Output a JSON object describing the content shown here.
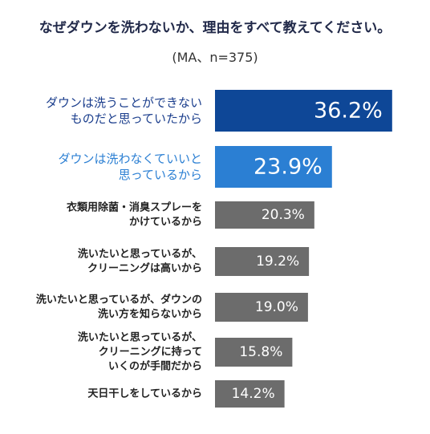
{
  "header": {
    "title": "なぜダウンを洗わないか、理由をすべて教えてください。",
    "subtitle": "(MA、n=375)"
  },
  "colors": {
    "top1": "#0e4797",
    "top2": "#2b7fd3",
    "other": "#6c6c6c",
    "top1_label": "#1a3d8c",
    "top2_label": "#2b7fd3",
    "other_label": "#222222"
  },
  "chart_data": {
    "type": "bar",
    "orientation": "horizontal",
    "title": "なぜダウンを洗わないか、理由をすべて教えてください。",
    "subtitle": "(MA、n=375)",
    "unit": "%",
    "xlim": [
      0,
      40
    ],
    "grid": false,
    "legend": "none",
    "categories": [
      [
        "ダウンは洗うことができない",
        "ものだと思っていたから"
      ],
      [
        "ダウンは洗わなくていいと",
        "思っているから"
      ],
      [
        "衣類用除菌・消臭スプレーを",
        "かけているから"
      ],
      [
        "洗いたいと思っているが、",
        "クリーニングは高いから"
      ],
      [
        "洗いたいと思っているが、ダウンの",
        "洗い方を知らないから"
      ],
      [
        "洗いたいと思っているが、",
        "クリーニングに持って",
        "いくのが手間だから"
      ],
      [
        "天日干しをしているから"
      ]
    ],
    "values": [
      36.2,
      23.9,
      20.3,
      19.2,
      19.0,
      15.8,
      14.2
    ],
    "value_labels": [
      "36.2%",
      "23.9%",
      "20.3%",
      "19.2%",
      "19.0%",
      "15.8%",
      "14.2%"
    ]
  }
}
